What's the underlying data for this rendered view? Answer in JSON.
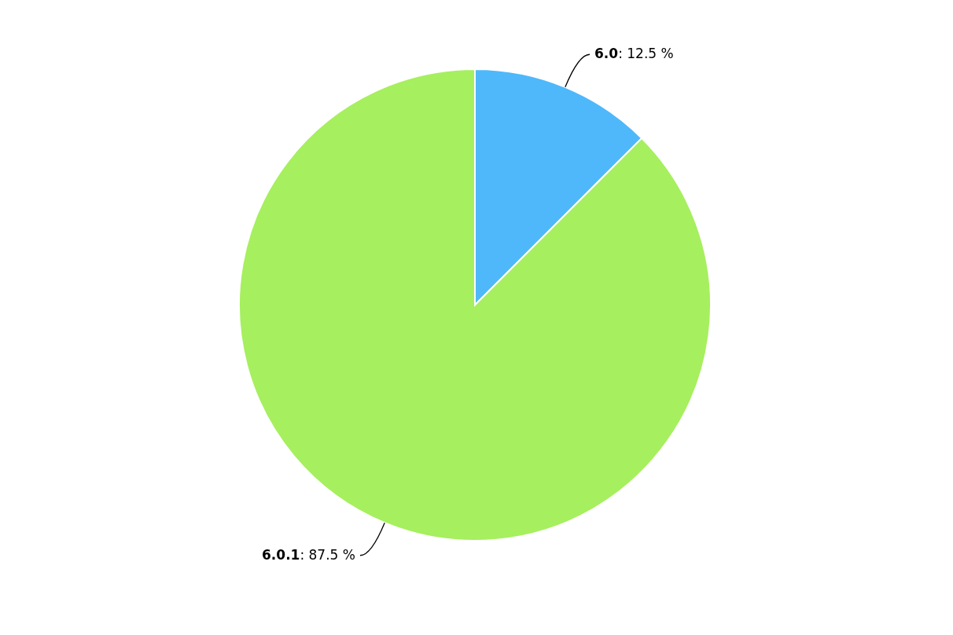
{
  "chart_data": {
    "type": "pie",
    "categories": [
      "6.0",
      "6.0.1"
    ],
    "values": [
      12.5,
      87.5
    ],
    "colors": [
      "#4fb8fa",
      "#a6ef5e"
    ],
    "value_labels": [
      ": 12.5 %",
      ": 87.5 %"
    ],
    "legend": false
  }
}
